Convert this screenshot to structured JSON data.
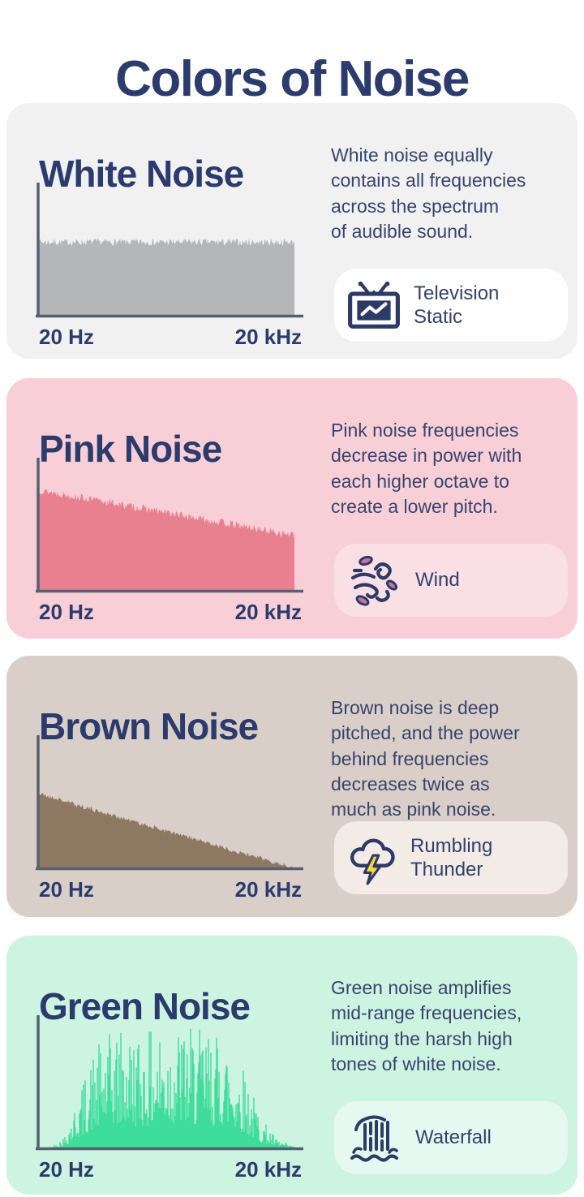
{
  "page": {
    "title": "Colors of Noise"
  },
  "theme": {
    "heading_color": "#2b3b6d",
    "body_text_color": "#38446d",
    "axis_color": "#56616f",
    "page_background": "#ffffff",
    "lightning_yellow": "#f5d93f",
    "leaf_pink": "#c8739f",
    "icon_navy": "#2d3a66"
  },
  "sections": [
    {
      "title": "White Noise",
      "description_lines": [
        "White noise equally",
        "contains all frequencies",
        "across the spectrum",
        "of audible sound."
      ],
      "ticks": {
        "left": "20 Hz",
        "right": "20 kHz"
      },
      "example": {
        "label_lines": [
          "Television",
          "Static"
        ],
        "icon": "television-static-icon"
      },
      "colors": {
        "card": "#f1f1f2",
        "chip": "#ffffff",
        "fill": "#b4b6b8"
      }
    },
    {
      "title": "Pink Noise",
      "description_lines": [
        "Pink noise frequencies",
        "decrease in power with",
        "each higher octave to",
        "create a lower pitch."
      ],
      "ticks": {
        "left": "20 Hz",
        "right": "20 kHz"
      },
      "example": {
        "label_lines": [
          "Wind"
        ],
        "icon": "wind-icon"
      },
      "colors": {
        "card": "#f9cfd7",
        "chip": "#fae0e5",
        "fill": "#e8808f"
      }
    },
    {
      "title": "Brown Noise",
      "description_lines": [
        "Brown noise is deep",
        "pitched, and the power",
        "behind frequencies",
        "decreases twice as",
        "much as pink noise."
      ],
      "ticks": {
        "left": "20 Hz",
        "right": "20 kHz"
      },
      "example": {
        "label_lines": [
          "Rumbling",
          "Thunder"
        ],
        "icon": "thunder-cloud-icon"
      },
      "colors": {
        "card": "#d9cfc8",
        "chip": "#f2ebe6",
        "fill": "#8d7862"
      }
    },
    {
      "title": "Green Noise",
      "description_lines": [
        "Green noise amplifies",
        "mid-range frequencies,",
        "limiting the harsh high",
        "tones of white noise."
      ],
      "ticks": {
        "left": "20 Hz",
        "right": "20 kHz"
      },
      "example": {
        "label_lines": [
          "Waterfall"
        ],
        "icon": "waterfall-icon"
      },
      "colors": {
        "card": "#cdf3e1",
        "chip": "#e6f9f0",
        "fill": "#3edd9b"
      }
    }
  ],
  "chart_data": [
    {
      "type": "area",
      "series": "White Noise spectrum",
      "xlabel_left": "20 Hz",
      "xlabel_right": "20 kHz",
      "x_scale": "audible frequency range 20 Hz – 20 kHz",
      "y_meaning": "relative power (flat: equal power at all frequencies)",
      "envelope_points": [
        [
          0,
          0.57
        ],
        [
          1,
          0.57
        ]
      ],
      "jitter": 0.028,
      "seed": 7,
      "color": "#b4b6b8"
    },
    {
      "type": "area",
      "series": "Pink Noise spectrum",
      "xlabel_left": "20 Hz",
      "xlabel_right": "20 kHz",
      "x_scale": "audible frequency range 20 Hz – 20 kHz",
      "y_meaning": "relative power (decreases with each higher octave)",
      "envelope_points": [
        [
          0,
          0.78
        ],
        [
          1,
          0.43
        ]
      ],
      "jitter": 0.03,
      "seed": 13,
      "color": "#e8808f"
    },
    {
      "type": "area",
      "series": "Brown Noise spectrum",
      "xlabel_left": "20 Hz",
      "xlabel_right": "20 kHz",
      "x_scale": "audible frequency range 20 Hz – 20 kHz",
      "y_meaning": "relative power (decreases twice as steeply as pink noise)",
      "envelope_points": [
        [
          0,
          0.58
        ],
        [
          0.5,
          0.29
        ],
        [
          1,
          0.005
        ]
      ],
      "jitter": 0.018,
      "seed": 21,
      "color": "#8d7862"
    },
    {
      "type": "spikes",
      "series": "Green Noise spectrum",
      "xlabel_left": "20 Hz",
      "xlabel_right": "20 kHz",
      "x_scale": "audible frequency range 20 Hz – 20 kHz",
      "y_meaning": "relative power (mid-range band amplified, lows and highs suppressed)",
      "envelope_points": [
        [
          0,
          0
        ],
        [
          0.05,
          0.01
        ],
        [
          0.1,
          0.06
        ],
        [
          0.16,
          0.28
        ],
        [
          0.22,
          0.5
        ],
        [
          0.3,
          0.6
        ],
        [
          0.42,
          0.58
        ],
        [
          0.52,
          0.63
        ],
        [
          0.62,
          0.6
        ],
        [
          0.72,
          0.58
        ],
        [
          0.8,
          0.42
        ],
        [
          0.87,
          0.16
        ],
        [
          0.93,
          0.05
        ],
        [
          1,
          0.01
        ]
      ],
      "jitter": 0.0,
      "seed": 42,
      "color": "#3edd9b"
    }
  ]
}
